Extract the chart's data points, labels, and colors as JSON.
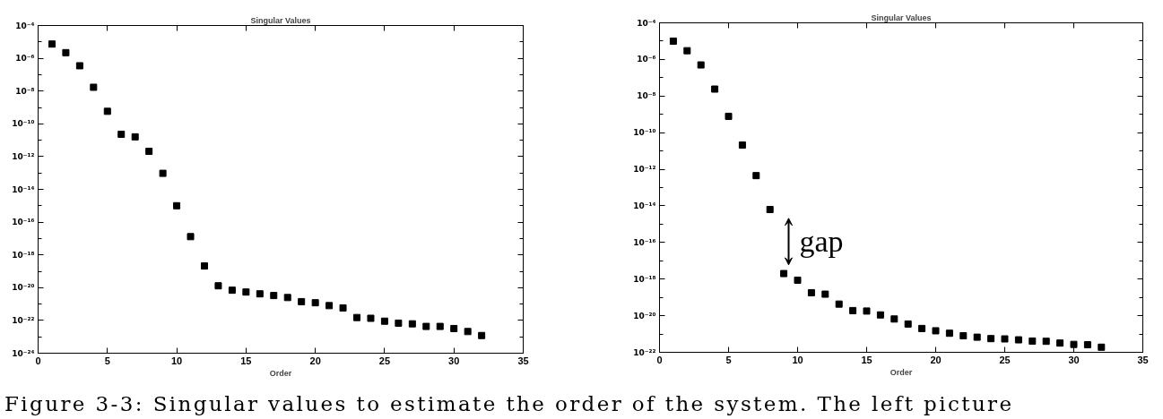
{
  "chart_data": [
    {
      "type": "scatter",
      "title": "Singular Values",
      "xlabel": "Order",
      "x": [
        1,
        2,
        3,
        4,
        5,
        6,
        7,
        8,
        9,
        10,
        11,
        12,
        13,
        14,
        15,
        16,
        17,
        18,
        19,
        20,
        21,
        22,
        23,
        24,
        25,
        26,
        27,
        28,
        29,
        30,
        31,
        32
      ],
      "series": [
        {
          "color": "#000000",
          "values": [
            7.4e-06,
            2.2e-06,
            3.5e-07,
            1.7e-08,
            5.8e-10,
            2.3e-11,
            1.6e-11,
            2.1e-12,
            9.5e-14,
            1e-15,
            1.3e-17,
            2.1e-19,
            1.3e-20,
            7e-21,
            5.4e-21,
            4.2e-21,
            3.3e-21,
            2.5e-21,
            1.4e-21,
            1.2e-21,
            8e-22,
            5.8e-22,
            1.5e-22,
            1.35e-22,
            9e-23,
            6.8e-23,
            6.2e-23,
            4.3e-23,
            4.3e-23,
            3.2e-23,
            2.1e-23,
            1.2e-23
          ]
        }
      ],
      "xlim": [
        0,
        35
      ],
      "xticks": [
        0,
        5,
        10,
        15,
        20,
        25,
        30,
        35
      ],
      "ylim": [
        1e-24,
        0.0001
      ],
      "yticks": [
        {
          "value": 0.0001,
          "label": "10⁻⁴"
        },
        {
          "value": 1e-05,
          "label": null
        },
        {
          "value": 1e-06,
          "label": "10⁻⁶"
        },
        {
          "value": 1e-07,
          "label": null
        },
        {
          "value": 1e-08,
          "label": "10⁻⁸"
        },
        {
          "value": 1e-09,
          "label": null
        },
        {
          "value": 1e-10,
          "label": "10⁻¹⁰"
        },
        {
          "value": 1e-11,
          "label": null
        },
        {
          "value": 1e-12,
          "label": "10⁻¹²"
        },
        {
          "value": 1e-13,
          "label": null
        },
        {
          "value": 1e-14,
          "label": "10⁻¹⁴"
        },
        {
          "value": 1e-15,
          "label": null
        },
        {
          "value": 1e-16,
          "label": "10⁻¹⁶"
        },
        {
          "value": 1e-17,
          "label": null
        },
        {
          "value": 1e-18,
          "label": "10⁻¹⁸"
        },
        {
          "value": 1e-19,
          "label": null
        },
        {
          "value": 1e-20,
          "label": "10⁻²⁰"
        },
        {
          "value": 1e-21,
          "label": null
        },
        {
          "value": 1e-22,
          "label": "10⁻²²"
        },
        {
          "value": 1e-23,
          "label": null
        },
        {
          "value": 1e-24,
          "label": "10⁻²⁴"
        }
      ],
      "log": true,
      "marker": "square"
    },
    {
      "type": "scatter",
      "title": "Singular Values",
      "xlabel": "Order",
      "x": [
        1,
        2,
        3,
        4,
        5,
        6,
        7,
        8,
        9,
        10,
        11,
        12,
        13,
        14,
        15,
        16,
        17,
        18,
        19,
        20,
        21,
        22,
        23,
        24,
        25,
        26,
        27,
        28,
        29,
        30,
        31,
        32
      ],
      "series": [
        {
          "color": "#000000",
          "values": [
            1e-05,
            3e-06,
            5e-07,
            2.4e-08,
            7.8e-10,
            2.1e-11,
            4.5e-13,
            6.3e-15,
            2e-18,
            8.7e-19,
            1.8e-19,
            1.5e-19,
            4.3e-20,
            1.9e-20,
            1.8e-20,
            1.1e-20,
            6.6e-21,
            3.5e-21,
            2e-21,
            1.5e-21,
            1.1e-21,
            8e-22,
            6.7e-22,
            5.6e-22,
            5.4e-22,
            4.8e-22,
            4.1e-22,
            4e-22,
            3.2e-22,
            2.7e-22,
            2.6e-22,
            1.9e-22
          ]
        }
      ],
      "xlim": [
        0,
        35
      ],
      "xticks": [
        0,
        5,
        10,
        15,
        20,
        25,
        30,
        35
      ],
      "ylim": [
        1e-22,
        0.0001
      ],
      "yticks": [
        {
          "value": 0.0001,
          "label": "10⁻⁴"
        },
        {
          "value": 1e-05,
          "label": null
        },
        {
          "value": 1e-06,
          "label": "10⁻⁶"
        },
        {
          "value": 1e-07,
          "label": null
        },
        {
          "value": 1e-08,
          "label": "10⁻⁸"
        },
        {
          "value": 1e-09,
          "label": null
        },
        {
          "value": 1e-10,
          "label": "10⁻¹⁰"
        },
        {
          "value": 1e-11,
          "label": null
        },
        {
          "value": 1e-12,
          "label": "10⁻¹²"
        },
        {
          "value": 1e-13,
          "label": null
        },
        {
          "value": 1e-14,
          "label": "10⁻¹⁴"
        },
        {
          "value": 1e-15,
          "label": null
        },
        {
          "value": 1e-16,
          "label": "10⁻¹⁶"
        },
        {
          "value": 1e-17,
          "label": null
        },
        {
          "value": 1e-18,
          "label": "10⁻¹⁸"
        },
        {
          "value": 1e-19,
          "label": null
        },
        {
          "value": 1e-20,
          "label": "10⁻²⁰"
        },
        {
          "value": 1e-21,
          "label": null
        },
        {
          "value": 1e-22,
          "label": "10⁻²²"
        }
      ],
      "log": true,
      "marker": "square",
      "annotations": [
        "gap",
        "Figure 3-3: Singular values to estimate the order of the system. The left picture"
      ]
    }
  ]
}
